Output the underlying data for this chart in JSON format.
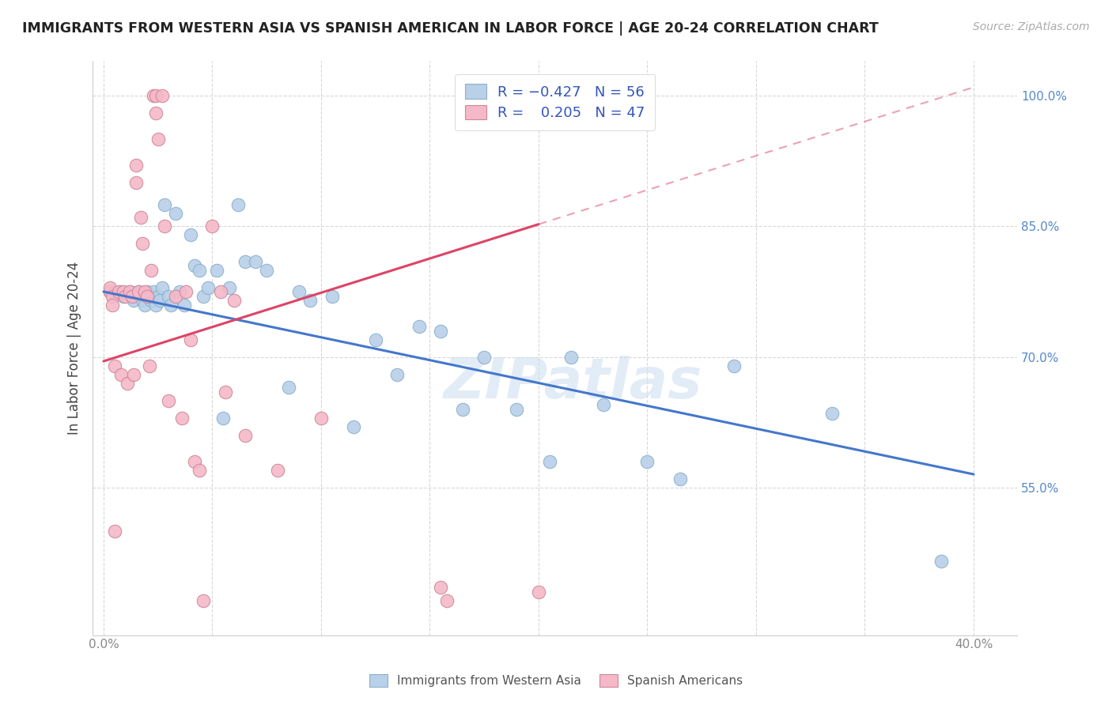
{
  "title": "IMMIGRANTS FROM WESTERN ASIA VS SPANISH AMERICAN IN LABOR FORCE | AGE 20-24 CORRELATION CHART",
  "source": "Source: ZipAtlas.com",
  "ylabel": "In Labor Force | Age 20-24",
  "xlim": [
    -0.005,
    0.42
  ],
  "ylim": [
    0.38,
    1.04
  ],
  "blue_color": "#b8d0e8",
  "pink_color": "#f5b8c8",
  "blue_line_color": "#4477cc",
  "pink_line_color": "#dd4466",
  "blue_R": -0.427,
  "blue_N": 56,
  "pink_R": 0.205,
  "pink_N": 47,
  "watermark": "ZIPatlas",
  "legend_label_blue": "Immigrants from Western Asia",
  "legend_label_pink": "Spanish Americans",
  "blue_scatter_x": [
    0.003,
    0.008,
    0.009,
    0.012,
    0.013,
    0.014,
    0.016,
    0.017,
    0.018,
    0.019,
    0.02,
    0.021,
    0.022,
    0.023,
    0.024,
    0.025,
    0.026,
    0.027,
    0.028,
    0.03,
    0.031,
    0.033,
    0.035,
    0.037,
    0.04,
    0.042,
    0.044,
    0.046,
    0.048,
    0.052,
    0.055,
    0.058,
    0.062,
    0.065,
    0.07,
    0.075,
    0.085,
    0.09,
    0.095,
    0.105,
    0.115,
    0.125,
    0.135,
    0.145,
    0.155,
    0.165,
    0.175,
    0.19,
    0.205,
    0.215,
    0.23,
    0.25,
    0.265,
    0.29,
    0.335,
    0.385
  ],
  "blue_scatter_y": [
    0.775,
    0.775,
    0.77,
    0.775,
    0.77,
    0.765,
    0.775,
    0.77,
    0.765,
    0.76,
    0.775,
    0.77,
    0.765,
    0.775,
    0.76,
    0.77,
    0.765,
    0.78,
    0.875,
    0.77,
    0.76,
    0.865,
    0.775,
    0.76,
    0.84,
    0.805,
    0.8,
    0.77,
    0.78,
    0.8,
    0.63,
    0.78,
    0.875,
    0.81,
    0.81,
    0.8,
    0.665,
    0.775,
    0.765,
    0.77,
    0.62,
    0.72,
    0.68,
    0.735,
    0.73,
    0.64,
    0.7,
    0.64,
    0.58,
    0.7,
    0.645,
    0.58,
    0.56,
    0.69,
    0.635,
    0.465
  ],
  "pink_scatter_x": [
    0.003,
    0.003,
    0.004,
    0.004,
    0.005,
    0.005,
    0.007,
    0.008,
    0.009,
    0.01,
    0.011,
    0.012,
    0.013,
    0.014,
    0.015,
    0.015,
    0.016,
    0.017,
    0.018,
    0.019,
    0.02,
    0.021,
    0.022,
    0.023,
    0.024,
    0.024,
    0.025,
    0.027,
    0.028,
    0.03,
    0.033,
    0.036,
    0.038,
    0.04,
    0.042,
    0.044,
    0.046,
    0.05,
    0.054,
    0.056,
    0.06,
    0.065,
    0.08,
    0.1,
    0.155,
    0.158,
    0.2
  ],
  "pink_scatter_y": [
    0.775,
    0.78,
    0.77,
    0.76,
    0.69,
    0.5,
    0.775,
    0.68,
    0.775,
    0.77,
    0.67,
    0.775,
    0.77,
    0.68,
    0.92,
    0.9,
    0.775,
    0.86,
    0.83,
    0.775,
    0.77,
    0.69,
    0.8,
    1.0,
    1.0,
    0.98,
    0.95,
    1.0,
    0.85,
    0.65,
    0.77,
    0.63,
    0.775,
    0.72,
    0.58,
    0.57,
    0.42,
    0.85,
    0.775,
    0.66,
    0.765,
    0.61,
    0.57,
    0.63,
    0.435,
    0.42,
    0.43
  ],
  "blue_line_x0": 0.0,
  "blue_line_y0": 0.775,
  "blue_line_x1": 0.4,
  "blue_line_y1": 0.565,
  "pink_line_x0": 0.0,
  "pink_line_y0": 0.695,
  "pink_line_x1": 0.4,
  "pink_line_y1": 1.01,
  "pink_line_solid_x1": 0.2
}
